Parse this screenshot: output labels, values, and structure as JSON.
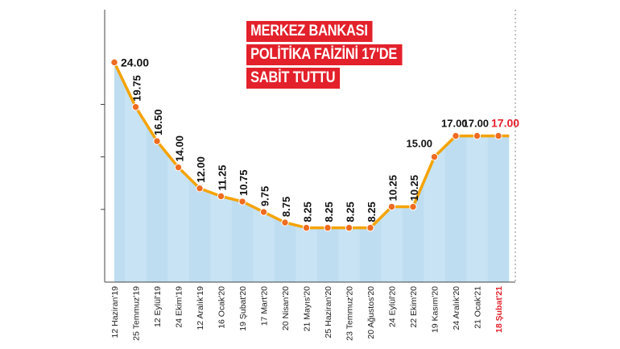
{
  "headline": {
    "line1": "MERKEZ BANKASI",
    "line2": "POLİTİKA FAİZİNİ 17'DE",
    "line3": "SABİT TUTTU"
  },
  "colors": {
    "area": "#c7e3f4",
    "band_dark": "#bcdcf0",
    "line": "#f5a300",
    "marker": "#ee6b20",
    "label": "#111111",
    "highlight": "#e3212b",
    "axis": "#444444",
    "grid": "#888888"
  },
  "chart_data": {
    "type": "area",
    "title": "MERKEZ BANKASI POLİTİKA FAİZİNİ 17'DE SABİT TUTTU",
    "xlabel": "",
    "ylabel": "",
    "ylim": [
      5,
      25
    ],
    "grid": false,
    "y_ticks_unlabeled": [
      10,
      15,
      20
    ],
    "categories": [
      "12 Haziran'19",
      "25 Temmuz'19",
      "12 Eylül'19",
      "24 Ekim'19",
      "12 Aralık'19",
      "16 Ocak'20",
      "19 Şubat'20",
      "17 Mart'20",
      "20 Nisan'20",
      "21 Mayıs'20",
      "25 Haziran'20",
      "23 Temmuz'20",
      "20 Ağustos'20",
      "24 Eylül'20",
      "22 Ekim'20",
      "19 Kasım'20",
      "24 Aralık'20",
      "21 Ocak'21",
      "18 Şubat'21"
    ],
    "values": [
      24.0,
      19.75,
      16.5,
      14.0,
      12.0,
      11.25,
      10.75,
      9.75,
      8.75,
      8.25,
      8.25,
      8.25,
      8.25,
      10.25,
      10.25,
      15.0,
      17.0,
      17.0,
      17.0
    ],
    "labels": [
      "24.00",
      "19.75",
      "16.50",
      "14.00",
      "12.00",
      "11.25",
      "10.75",
      "9.75",
      "8.75",
      "8.25",
      "8.25",
      "8.25",
      "8.25",
      "10.25",
      "10.25",
      "15.00",
      "17.00",
      "17.00",
      "17.00"
    ],
    "highlight_index": 18
  }
}
